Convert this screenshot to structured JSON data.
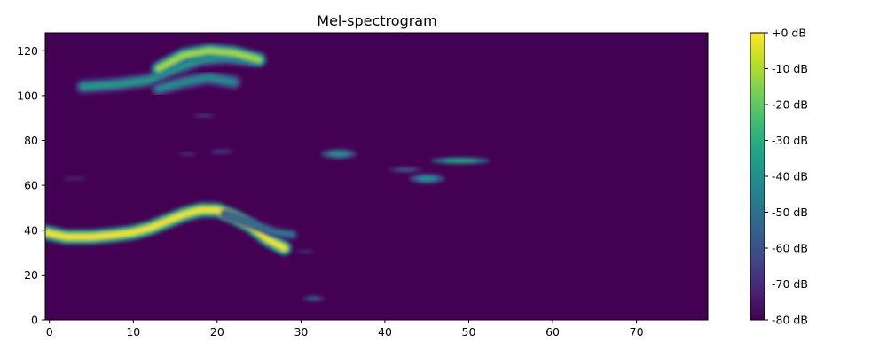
{
  "chart_data": {
    "type": "heatmap",
    "title": "Mel-spectrogram",
    "xlabel": "",
    "ylabel": "",
    "x_range": [
      -0.5,
      78.5
    ],
    "y_range": [
      0,
      128
    ],
    "x_ticks": [
      0,
      10,
      20,
      30,
      40,
      50,
      60,
      70
    ],
    "y_ticks": [
      0,
      20,
      40,
      60,
      80,
      100,
      120
    ],
    "colormap": "viridis",
    "colorbar": {
      "range": [
        -80,
        0
      ],
      "ticks": [
        0,
        -10,
        -20,
        -30,
        -40,
        -50,
        -60,
        -70,
        -80
      ],
      "tick_labels": [
        "+0 dB",
        "-10 dB",
        "-20 dB",
        "-30 dB",
        "-40 dB",
        "-50 dB",
        "-60 dB",
        "-70 dB",
        "-80 dB"
      ]
    },
    "background_db": -80,
    "features": [
      {
        "name": "harmonic-upper",
        "type": "curve",
        "points": [
          [
            4,
            104
          ],
          [
            8,
            105
          ],
          [
            12,
            107
          ],
          [
            15,
            112
          ],
          [
            18,
            116
          ],
          [
            21,
            117
          ],
          [
            24,
            116
          ]
        ],
        "width_bins": 3,
        "peak_db": -35
      },
      {
        "name": "harmonic-top",
        "type": "curve",
        "points": [
          [
            13,
            112
          ],
          [
            16,
            118
          ],
          [
            19,
            120
          ],
          [
            22,
            119
          ],
          [
            25,
            116
          ]
        ],
        "width_bins": 3,
        "peak_db": -10
      },
      {
        "name": "harmonic-low",
        "type": "curve",
        "points": [
          [
            13,
            103
          ],
          [
            16,
            106
          ],
          [
            19,
            108
          ],
          [
            22,
            106
          ]
        ],
        "width_bins": 3,
        "peak_db": -40
      },
      {
        "name": "fundamental",
        "type": "curve",
        "points": [
          [
            -0.5,
            39
          ],
          [
            2,
            37
          ],
          [
            5,
            37
          ],
          [
            8,
            38
          ],
          [
            10,
            39
          ],
          [
            12,
            41
          ],
          [
            14,
            44
          ],
          [
            16,
            47
          ],
          [
            18,
            49
          ],
          [
            20,
            49
          ],
          [
            22,
            46
          ],
          [
            24,
            42
          ],
          [
            26,
            36
          ],
          [
            28,
            32
          ]
        ],
        "width_bins": 3,
        "peak_db": 0
      },
      {
        "name": "fundamental-tail",
        "type": "curve",
        "points": [
          [
            21,
            47
          ],
          [
            24,
            43
          ],
          [
            27,
            39
          ],
          [
            29,
            38
          ]
        ],
        "width_bins": 2,
        "peak_db": -45
      },
      {
        "name": "blob-34-74",
        "type": "blob",
        "center": [
          34.5,
          74
        ],
        "size": [
          3,
          3
        ],
        "peak_db": -40
      },
      {
        "name": "blob-44-63",
        "type": "blob",
        "center": [
          45,
          63
        ],
        "size": [
          3,
          3
        ],
        "peak_db": -40
      },
      {
        "name": "blob-49-71",
        "type": "blob",
        "center": [
          49,
          71
        ],
        "size": [
          5,
          2
        ],
        "peak_db": -30
      },
      {
        "name": "blob-43-67",
        "type": "blob",
        "center": [
          42.5,
          67
        ],
        "size": [
          3,
          1.5
        ],
        "peak_db": -50
      },
      {
        "name": "blob-32-9",
        "type": "blob",
        "center": [
          31.5,
          9.5
        ],
        "size": [
          2,
          1.5
        ],
        "peak_db": -50
      },
      {
        "name": "blob-18-91",
        "type": "blob",
        "center": [
          18.5,
          91
        ],
        "size": [
          2,
          1
        ],
        "peak_db": -60
      },
      {
        "name": "blob-21-75",
        "type": "blob",
        "center": [
          20.5,
          75
        ],
        "size": [
          2,
          1.5
        ],
        "peak_db": -65
      },
      {
        "name": "blob-16-74",
        "type": "blob",
        "center": [
          16.5,
          74
        ],
        "size": [
          1.5,
          1
        ],
        "peak_db": -65
      },
      {
        "name": "blob-31-31",
        "type": "blob",
        "center": [
          30.5,
          30.5
        ],
        "size": [
          1.5,
          1
        ],
        "peak_db": -65
      },
      {
        "name": "blob-3-63",
        "type": "blob",
        "center": [
          3,
          63
        ],
        "size": [
          2,
          1
        ],
        "peak_db": -70
      }
    ]
  },
  "colors": {
    "background": "#ffffff",
    "axis": "#000000"
  }
}
